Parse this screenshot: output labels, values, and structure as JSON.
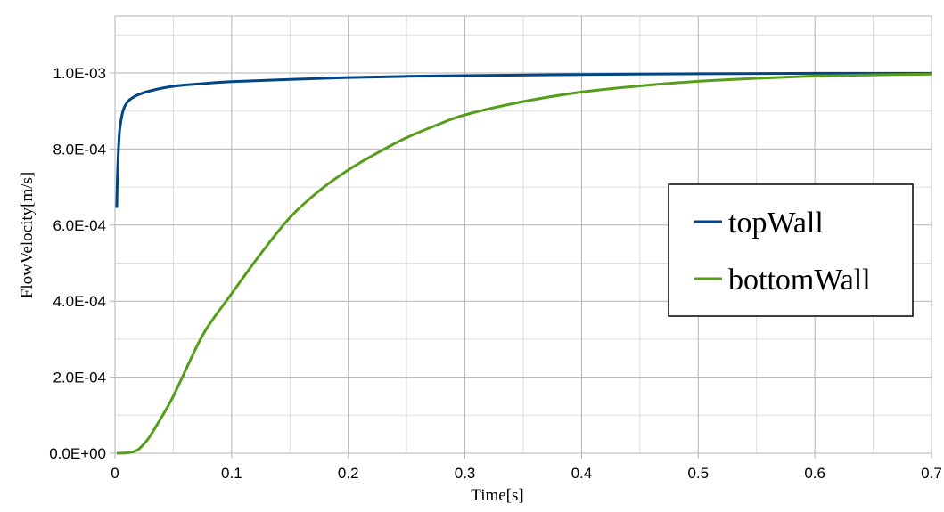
{
  "chart_data": {
    "type": "line",
    "title": "",
    "xlabel": "Time[s]",
    "ylabel": "FlowVelocity[m/s]",
    "xlim": [
      0,
      0.7
    ],
    "ylim": [
      0,
      0.00115
    ],
    "x_ticks": [
      0,
      0.1,
      0.2,
      0.3,
      0.4,
      0.5,
      0.6,
      0.7
    ],
    "x_tick_labels": [
      "0",
      "0.1",
      "0.2",
      "0.3",
      "0.4",
      "0.5",
      "0.6",
      "0.7"
    ],
    "y_ticks": [
      0,
      0.0002,
      0.0004,
      0.0006,
      0.0008,
      0.001
    ],
    "y_tick_labels": [
      "0.0E+00",
      "2.0E-04",
      "4.0E-04",
      "6.0E-04",
      "8.0E-04",
      "1.0E-03"
    ],
    "grid": true,
    "minor_grid": true,
    "legend_position": "right-center",
    "series": [
      {
        "name": "topWall",
        "color": "#004586",
        "x": [
          0.0015,
          0.002,
          0.003,
          0.004,
          0.006,
          0.008,
          0.011,
          0.015,
          0.02,
          0.03,
          0.05,
          0.075,
          0.1,
          0.15,
          0.2,
          0.25,
          0.3,
          0.4,
          0.5,
          0.6,
          0.7
        ],
        "y": [
          0.000645,
          0.00072,
          0.0008,
          0.00085,
          0.00089,
          0.00091,
          0.000925,
          0.000935,
          0.000943,
          0.000953,
          0.000965,
          0.000972,
          0.000977,
          0.000983,
          0.000988,
          0.000991,
          0.000993,
          0.000996,
          0.000998,
          0.000999,
          0.000999
        ]
      },
      {
        "name": "bottomWall",
        "color": "#579d1c",
        "x": [
          0.0015,
          0.01,
          0.015,
          0.02,
          0.025,
          0.03,
          0.04,
          0.05,
          0.06,
          0.07,
          0.08,
          0.1,
          0.125,
          0.15,
          0.175,
          0.2,
          0.225,
          0.25,
          0.275,
          0.3,
          0.35,
          0.4,
          0.45,
          0.5,
          0.55,
          0.6,
          0.65,
          0.7
        ],
        "y": [
          0.0,
          1e-06,
          3e-06,
          1e-05,
          2.5e-05,
          4.5e-05,
          9.5e-05,
          0.00015,
          0.000215,
          0.00028,
          0.000335,
          0.00042,
          0.000525,
          0.00062,
          0.00069,
          0.000745,
          0.00079,
          0.00083,
          0.000862,
          0.00089,
          0.000925,
          0.00095,
          0.000966,
          0.000978,
          0.000986,
          0.000992,
          0.000995,
          0.000997
        ]
      }
    ]
  },
  "legend": {
    "items": [
      {
        "label": "topWall",
        "color": "#004586"
      },
      {
        "label": "bottomWall",
        "color": "#579d1c"
      }
    ]
  },
  "axes": {
    "x_title": "Time[s]",
    "y_title": "FlowVelocity[m/s]"
  }
}
